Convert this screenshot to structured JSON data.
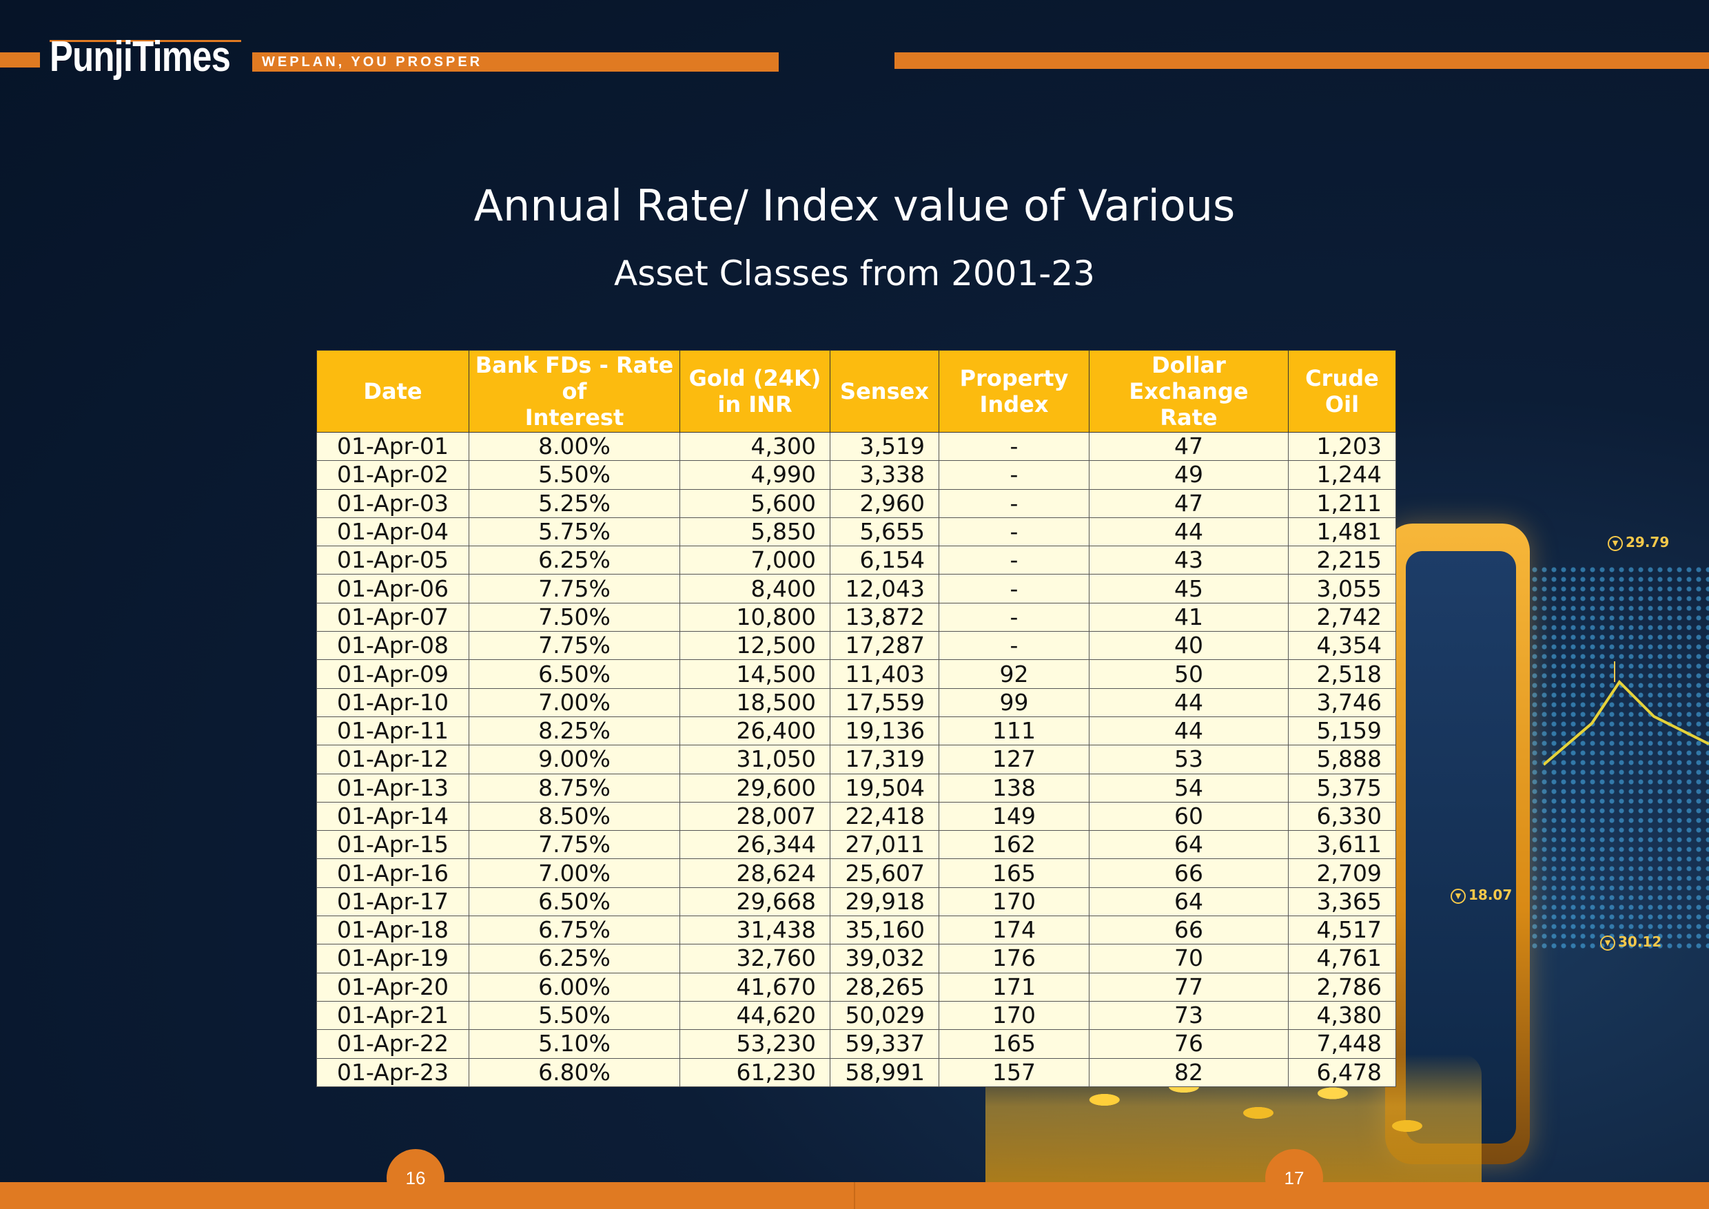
{
  "header": {
    "brand": "PunjiTimes",
    "tagline": "WEPLAN, YOU PROSPER"
  },
  "title": {
    "line1": "Annual Rate/ Index value of Various",
    "line2": "Asset Classes from 2001-23"
  },
  "decor": {
    "markers": [
      "29.79",
      "18.07",
      "30.12"
    ]
  },
  "table": {
    "headers": {
      "date": [
        "Date"
      ],
      "fd": [
        "Bank FDs - Rate of",
        "Interest"
      ],
      "gold": [
        "Gold (24K)",
        "in INR"
      ],
      "sensex": [
        "Sensex"
      ],
      "property": [
        "Property",
        "Index"
      ],
      "dollar": [
        "Dollar Exchange",
        "Rate"
      ],
      "crude": [
        "Crude",
        "Oil"
      ]
    },
    "rows": [
      [
        "01-Apr-01",
        "8.00%",
        "4,300",
        "3,519",
        "-",
        "47",
        "1,203"
      ],
      [
        "01-Apr-02",
        "5.50%",
        "4,990",
        "3,338",
        "-",
        "49",
        "1,244"
      ],
      [
        "01-Apr-03",
        "5.25%",
        "5,600",
        "2,960",
        "-",
        "47",
        "1,211"
      ],
      [
        "01-Apr-04",
        "5.75%",
        "5,850",
        "5,655",
        "-",
        "44",
        "1,481"
      ],
      [
        "01-Apr-05",
        "6.25%",
        "7,000",
        "6,154",
        "-",
        "43",
        "2,215"
      ],
      [
        "01-Apr-06",
        "7.75%",
        "8,400",
        "12,043",
        "-",
        "45",
        "3,055"
      ],
      [
        "01-Apr-07",
        "7.50%",
        "10,800",
        "13,872",
        "-",
        "41",
        "2,742"
      ],
      [
        "01-Apr-08",
        "7.75%",
        "12,500",
        "17,287",
        "-",
        "40",
        "4,354"
      ],
      [
        "01-Apr-09",
        "6.50%",
        "14,500",
        "11,403",
        "92",
        "50",
        "2,518"
      ],
      [
        "01-Apr-10",
        "7.00%",
        "18,500",
        "17,559",
        "99",
        "44",
        "3,746"
      ],
      [
        "01-Apr-11",
        "8.25%",
        "26,400",
        "19,136",
        "111",
        "44",
        "5,159"
      ],
      [
        "01-Apr-12",
        "9.00%",
        "31,050",
        "17,319",
        "127",
        "53",
        "5,888"
      ],
      [
        "01-Apr-13",
        "8.75%",
        "29,600",
        "19,504",
        "138",
        "54",
        "5,375"
      ],
      [
        "01-Apr-14",
        "8.50%",
        "28,007",
        "22,418",
        "149",
        "60",
        "6,330"
      ],
      [
        "01-Apr-15",
        "7.75%",
        "26,344",
        "27,011",
        "162",
        "64",
        "3,611"
      ],
      [
        "01-Apr-16",
        "7.00%",
        "28,624",
        "25,607",
        "165",
        "66",
        "2,709"
      ],
      [
        "01-Apr-17",
        "6.50%",
        "29,668",
        "29,918",
        "170",
        "64",
        "3,365"
      ],
      [
        "01-Apr-18",
        "6.75%",
        "31,438",
        "35,160",
        "174",
        "66",
        "4,517"
      ],
      [
        "01-Apr-19",
        "6.25%",
        "32,760",
        "39,032",
        "176",
        "70",
        "4,761"
      ],
      [
        "01-Apr-20",
        "6.00%",
        "41,670",
        "28,265",
        "171",
        "77",
        "2,786"
      ],
      [
        "01-Apr-21",
        "5.50%",
        "44,620",
        "50,029",
        "170",
        "73",
        "4,380"
      ],
      [
        "01-Apr-22",
        "5.10%",
        "53,230",
        "59,337",
        "165",
        "76",
        "7,448"
      ],
      [
        "01-Apr-23",
        "6.80%",
        "61,230",
        "58,991",
        "157",
        "82",
        "6,478"
      ]
    ]
  },
  "footer": {
    "left_page": "16",
    "right_page": "17"
  }
}
